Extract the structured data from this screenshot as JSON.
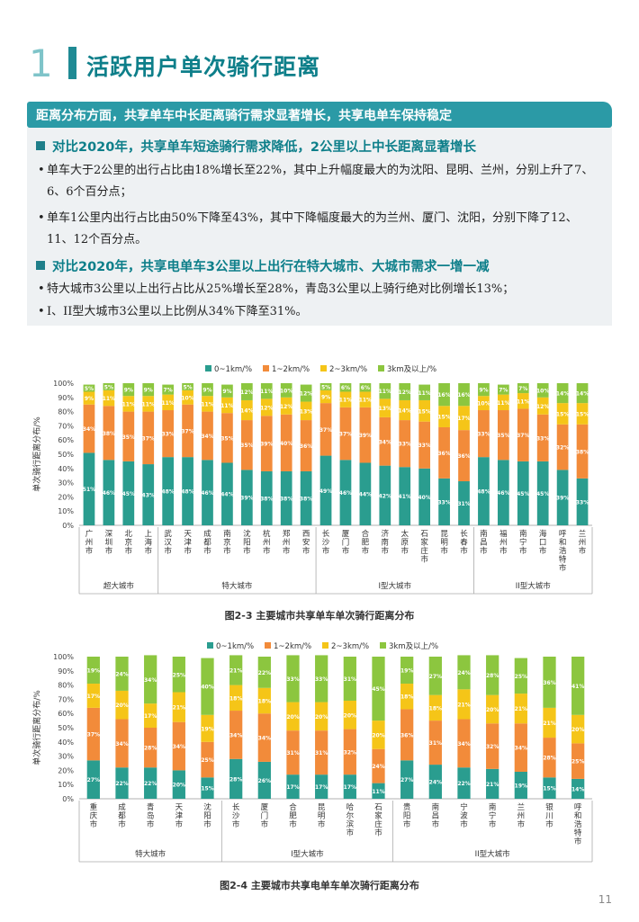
{
  "section": {
    "number": "1",
    "title": "活跃用户单次骑行距离"
  },
  "banner": "距离分布方面，共享单车中长距离骑行需求显著增长，共享电单车保持稳定",
  "points": [
    {
      "heading": "对比2020年，共享单车短途骑行需求降低，2公里以上中长距离显著增长",
      "bullets": [
        "单车大于2公里的出行占比由18%增长至22%，其中上升幅度最大的为沈阳、昆明、兰州，分别上升了7、6、6个百分点；",
        "单车1公里内出行占比由50%下降至43%，其中下降幅度最大的为兰州、厦门、沈阳，分别下降了12、11、12个百分点。"
      ]
    },
    {
      "heading": "对比2020年，共享电单车3公里以上出行在特大城市、大城市需求一增一减",
      "bullets": [
        "特大城市3公里以上出行占比从25%增长至28%，青岛3公里以上骑行绝对比例增长13%；",
        "I、II型大城市3公里以上比例从34%下降至31%。"
      ]
    }
  ],
  "chart_data": [
    {
      "type": "bar",
      "stacked": true,
      "caption": "图2-3 主要城市共享单车单次骑行距离分布",
      "ylabel": "单次骑行距离分布/%",
      "ylim": [
        0,
        100
      ],
      "yticks": [
        "0%",
        "10%",
        "20%",
        "30%",
        "40%",
        "50%",
        "60%",
        "70%",
        "80%",
        "90%",
        "100%"
      ],
      "legend": [
        "0~1km/%",
        "1~2km/%",
        "2~3km/%",
        "3km及以上/%"
      ],
      "colors": [
        "#2a9d8f",
        "#f28b3a",
        "#f5c518",
        "#8cc63f"
      ],
      "categories": [
        "广州市",
        "深圳市",
        "北京市",
        "上海市",
        "武汉市",
        "天津市",
        "成都市",
        "南京市",
        "沈阳市",
        "杭州市",
        "郑州市",
        "西安市",
        "长沙市",
        "厦门市",
        "合肥市",
        "济南市",
        "太原市",
        "石家庄市",
        "昆明市",
        "长春市",
        "南昌市",
        "福州市",
        "南宁市",
        "海口市",
        "呼和浩特市",
        "兰州市"
      ],
      "groups": [
        {
          "name": "超大城市",
          "count": 4
        },
        {
          "name": "特大城市",
          "count": 8
        },
        {
          "name": "I型大城市",
          "count": 8
        },
        {
          "name": "II型大城市",
          "count": 6
        }
      ],
      "series": [
        {
          "name": "0~1km/%",
          "values": [
            51,
            46,
            45,
            43,
            48,
            48,
            46,
            44,
            39,
            38,
            38,
            38,
            49,
            46,
            44,
            42,
            41,
            40,
            33,
            31,
            48,
            46,
            45,
            45,
            39,
            33
          ]
        },
        {
          "name": "1~2km/%",
          "values": [
            34,
            38,
            35,
            37,
            33,
            37,
            34,
            35,
            35,
            39,
            40,
            36,
            37,
            37,
            39,
            34,
            33,
            33,
            36,
            36,
            33,
            35,
            37,
            33,
            32,
            38
          ]
        },
        {
          "name": "2~3km/%",
          "values": [
            9,
            11,
            11,
            11,
            11,
            10,
            11,
            11,
            14,
            12,
            12,
            13,
            9,
            11,
            11,
            13,
            14,
            15,
            15,
            17,
            10,
            11,
            11,
            12,
            15,
            15
          ]
        },
        {
          "name": "3km及以上/%",
          "values": [
            5,
            5,
            9,
            9,
            7,
            5,
            9,
            9,
            12,
            11,
            10,
            12,
            5,
            6,
            6,
            11,
            12,
            11,
            16,
            16,
            9,
            7,
            7,
            10,
            14,
            14
          ]
        }
      ]
    },
    {
      "type": "bar",
      "stacked": true,
      "caption": "图2-4 主要城市共享电单车单次骑行距离分布",
      "ylabel": "单次骑行距离分布/%",
      "ylim": [
        0,
        100
      ],
      "yticks": [
        "0%",
        "10%",
        "20%",
        "30%",
        "40%",
        "50%",
        "60%",
        "70%",
        "80%",
        "90%",
        "100%"
      ],
      "legend": [
        "0~1km/%",
        "1~2km/%",
        "2~3km/%",
        "3km及以上/%"
      ],
      "colors": [
        "#2a9d8f",
        "#f28b3a",
        "#f5c518",
        "#8cc63f"
      ],
      "categories": [
        "重庆市",
        "成都市",
        "青岛市",
        "天津市",
        "沈阳市",
        "长沙市",
        "厦门市",
        "合肥市",
        "昆明市",
        "哈尔滨市",
        "石家庄市",
        "贵阳市",
        "南昌市",
        "宁波市",
        "南宁市",
        "兰州市",
        "银川市",
        "呼和浩特市"
      ],
      "groups": [
        {
          "name": "特大城市",
          "count": 5
        },
        {
          "name": "I型大城市",
          "count": 6
        },
        {
          "name": "II型大城市",
          "count": 7
        }
      ],
      "series": [
        {
          "name": "0~1km/%",
          "values": [
            27,
            22,
            22,
            20,
            15,
            28,
            26,
            17,
            17,
            17,
            11,
            27,
            24,
            22,
            21,
            19,
            15,
            14
          ]
        },
        {
          "name": "1~2km/%",
          "values": [
            37,
            34,
            28,
            34,
            25,
            34,
            34,
            31,
            31,
            32,
            24,
            36,
            31,
            34,
            32,
            34,
            28,
            25
          ]
        },
        {
          "name": "2~3km/%",
          "values": [
            17,
            20,
            17,
            21,
            19,
            18,
            18,
            20,
            20,
            20,
            20,
            18,
            18,
            21,
            20,
            21,
            21,
            20
          ]
        },
        {
          "name": "3km及以上/%",
          "values": [
            19,
            24,
            34,
            25,
            40,
            21,
            22,
            33,
            33,
            31,
            45,
            19,
            27,
            24,
            28,
            25,
            36,
            41
          ]
        }
      ]
    }
  ],
  "page_number": "11"
}
